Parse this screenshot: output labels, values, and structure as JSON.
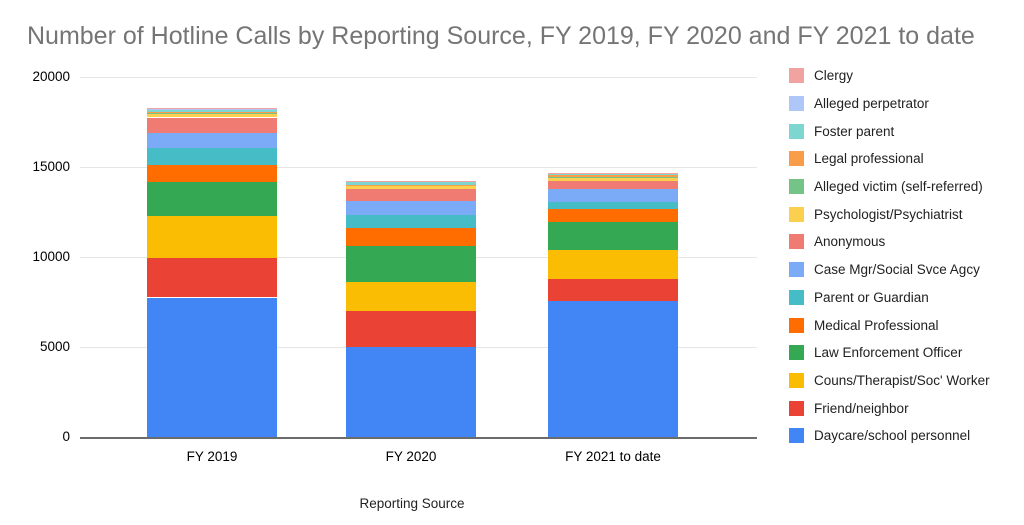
{
  "chart_data": {
    "type": "bar",
    "stacked": true,
    "title": "Number of Hotline Calls by Reporting Source, FY 2019, FY 2020 and FY 2021 to date",
    "xlabel": "Reporting Source",
    "ylabel": "",
    "categories": [
      "FY 2019",
      "FY 2020",
      "FY 2021 to date"
    ],
    "ylim": [
      0,
      20000
    ],
    "yticks": [
      0,
      5000,
      10000,
      15000,
      20000
    ],
    "grid": true,
    "legend_position": "right",
    "title_color": "#757575",
    "series": [
      {
        "name": "Daycare/school personnel",
        "color": "#4285F4",
        "values": [
          7750,
          5000,
          7550
        ]
      },
      {
        "name": "Friend/neighbor",
        "color": "#EA4335",
        "values": [
          2200,
          2000,
          1250
        ]
      },
      {
        "name": "Couns/Therapist/Soc' Worker",
        "color": "#FBBC04",
        "values": [
          2330,
          1590,
          1570
        ]
      },
      {
        "name": "Law Enforcement Officer",
        "color": "#34A853",
        "values": [
          1900,
          2020,
          1570
        ]
      },
      {
        "name": "Medical Professional",
        "color": "#FF6D01",
        "values": [
          930,
          1000,
          700
        ]
      },
      {
        "name": "Parent or Guardian",
        "color": "#46BDC6",
        "values": [
          930,
          740,
          430
        ]
      },
      {
        "name": "Case Mgr/Social Svce Agcy",
        "color": "#7BAAF7",
        "values": [
          830,
          780,
          720
        ]
      },
      {
        "name": "Anonymous",
        "color": "#F07B72",
        "values": [
          880,
          660,
          440
        ]
      },
      {
        "name": "Psychologist/Psychiatrist",
        "color": "#FCD04F",
        "values": [
          220,
          170,
          170
        ]
      },
      {
        "name": "Alleged victim (self-referred)",
        "color": "#74C488",
        "values": [
          30,
          30,
          30
        ]
      },
      {
        "name": "Legal professional",
        "color": "#FA9D4B",
        "values": [
          30,
          30,
          170
        ]
      },
      {
        "name": "Foster parent",
        "color": "#7DD6D0",
        "values": [
          180,
          150,
          30
        ]
      },
      {
        "name": "Alleged perpetrator",
        "color": "#AFC6F8",
        "values": [
          30,
          30,
          30
        ]
      },
      {
        "name": "Clergy",
        "color": "#F0A3A1",
        "values": [
          30,
          30,
          30
        ]
      }
    ]
  }
}
